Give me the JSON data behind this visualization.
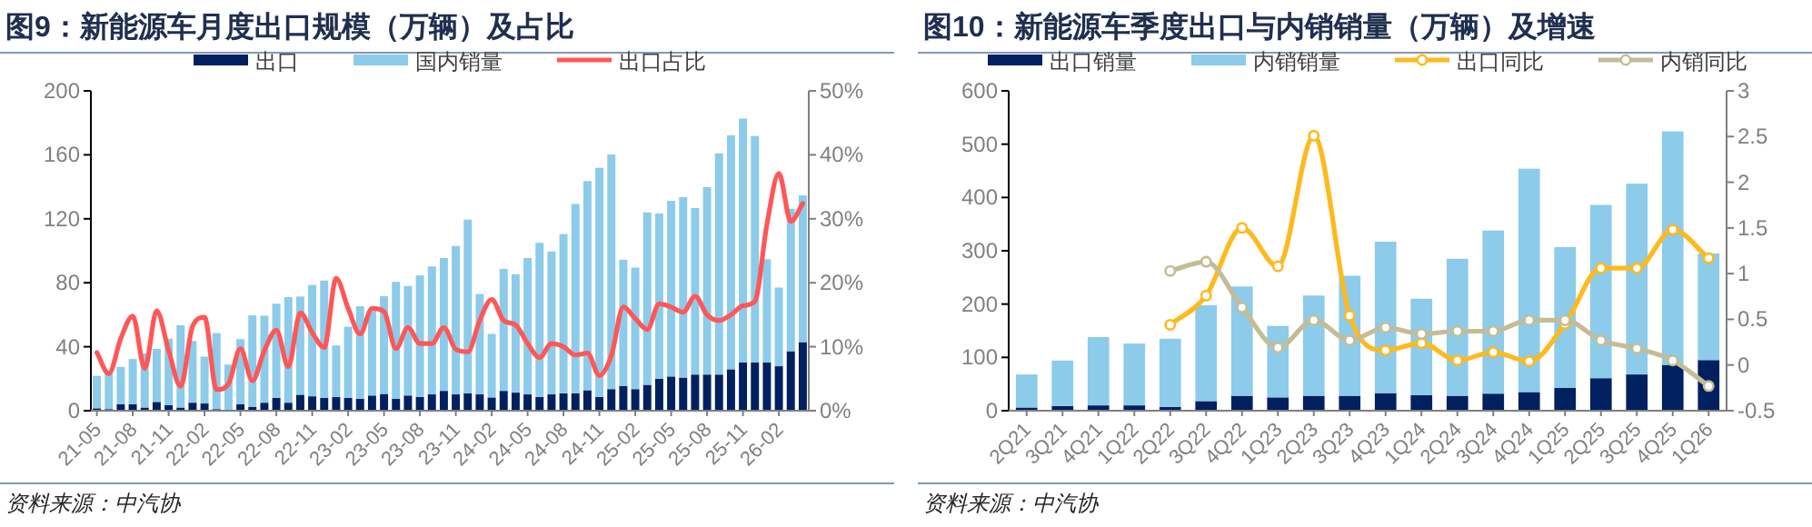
{
  "chart_data": [
    {
      "type": "bar",
      "title": "图9：新能源车月度出口规模（万辆）及占比",
      "stacked": true,
      "legend": "top",
      "categories": [
        "21-05",
        null,
        null,
        "21-08",
        null,
        null,
        "21-11",
        null,
        null,
        "22-02",
        null,
        null,
        "22-05",
        null,
        null,
        "22-08",
        null,
        null,
        "22-11",
        null,
        null,
        "23-02",
        null,
        null,
        "23-05",
        null,
        null,
        "23-08",
        null,
        null,
        "23-11",
        null,
        null,
        "24-02",
        null,
        null,
        "24-05",
        null,
        null,
        "24-08",
        null,
        null,
        "24-11",
        null,
        null,
        "25-02",
        null,
        null,
        "25-05",
        null,
        null,
        "25-08",
        null,
        null,
        "25-11",
        null,
        null,
        "26-02",
        null,
        null
      ],
      "series": [
        {
          "name": "出口",
          "color": "#002060",
          "values": [
            1.5,
            1,
            4,
            4,
            2,
            5.5,
            3.5,
            2,
            5,
            4.5,
            1,
            null,
            4,
            2.5,
            5,
            8,
            5,
            10,
            9,
            8,
            8.5,
            8,
            7.5,
            9.5,
            10.5,
            7.5,
            9.5,
            8.6,
            10.2,
            12.4,
            10.2,
            10.9,
            10.2,
            8.3,
            12.4,
            11.3,
            10.2,
            8.6,
            10.2,
            10.9,
            10.9,
            12.8,
            8.6,
            13.5,
            15.4,
            13.5,
            16.2,
            19.9,
            21.4,
            20.7,
            22.6,
            22.6,
            22.6,
            25.9,
            30.1,
            30.1,
            30.1,
            27.8,
            37.2,
            42.9
          ]
        },
        {
          "name": "国内销量",
          "color": "#8ccbea",
          "values": [
            20.3,
            23,
            23.4,
            28.3,
            33.7,
            33.2,
            41.5,
            51.4,
            38.6,
            29.3,
            47.5,
            28.8,
            40.7,
            57.1,
            54.4,
            58.9,
            66,
            61.4,
            69.6,
            73.4,
            32.3,
            44.5,
            57.8,
            54.1,
            61.2,
            73.1,
            68.5,
            76,
            80,
            83.1,
            92.8,
            108.6,
            62.8,
            39.7,
            76.3,
            74,
            85.3,
            96.4,
            89.4,
            99.6,
            118.4,
            130.8,
            143.3,
            146.7,
            79,
            76,
            107.8,
            103.4,
            109.8,
            112.8,
            104.1,
            117.2,
            138.3,
            146.3,
            152.6,
            141.7,
            64.6,
            49.2,
            89.1,
            91.7
          ]
        },
        {
          "name": "出口占比",
          "type": "line",
          "axis": "y2",
          "color": "#ff5757",
          "values": [
            9.1,
            5.8,
            11.3,
            14.8,
            6.6,
            15.6,
            9.4,
            3.8,
            13.2,
            14.6,
            3.3,
            4.2,
            9.7,
            4.7,
            9.4,
            12.6,
            6.9,
            15.3,
            12.2,
            9.9,
            20.7,
            16,
            12,
            16,
            15.5,
            9.7,
            13,
            10.5,
            10.5,
            13,
            9.6,
            9.2,
            14.1,
            17.4,
            14.1,
            13.4,
            10.5,
            8.3,
            10.5,
            10,
            8.7,
            9,
            5.5,
            8.6,
            16.2,
            14.4,
            12.7,
            16.7,
            16.2,
            15.4,
            17.9,
            15,
            14.1,
            15,
            16.4,
            17.1,
            29.1,
            37.1,
            29.6,
            32.4
          ]
        }
      ],
      "ylim": [
        0,
        200
      ],
      "yticks": [
        0,
        40,
        80,
        120,
        160,
        200
      ],
      "y2lim": [
        0,
        50
      ],
      "y2ticks": [
        {
          "value": 0,
          "label": "0%"
        },
        {
          "value": 10,
          "label": "10%"
        },
        {
          "value": 20,
          "label": "20%"
        },
        {
          "value": 30,
          "label": "30%"
        },
        {
          "value": 40,
          "label": "40%"
        },
        {
          "value": 50,
          "label": "50%"
        }
      ],
      "annotations": [
        "资料来源：中汽协"
      ]
    },
    {
      "type": "bar",
      "title": "图10：新能源车季度出口与内销销量（万辆）及增速",
      "stacked": true,
      "legend": "top",
      "categories": [
        "2Q21",
        "3Q21",
        "4Q21",
        "1Q22",
        "2Q22",
        "3Q22",
        "4Q22",
        "1Q23",
        "2Q23",
        "3Q23",
        "4Q23",
        "1Q24",
        "2Q24",
        "3Q24",
        "4Q24",
        "1Q25",
        "2Q25",
        "3Q25",
        "4Q25",
        "1Q26"
      ],
      "series": [
        {
          "name": "出口销量",
          "color": "#002060",
          "values": [
            6,
            9,
            10,
            10,
            7,
            18,
            28,
            25,
            28,
            28,
            33,
            29,
            28,
            32,
            35,
            43,
            61,
            68,
            86,
            95
          ]
        },
        {
          "name": "内销销量",
          "color": "#8ccbea",
          "values": [
            62,
            85,
            128,
            116,
            128,
            180,
            205,
            134,
            188,
            225,
            284,
            181,
            257,
            306,
            419,
            264,
            325,
            358,
            438,
            200
          ]
        },
        {
          "name": "出口同比",
          "type": "line",
          "axis": "y2",
          "marker": "circle",
          "color": "#ffb91d",
          "values": [
            null,
            null,
            null,
            null,
            0.44,
            0.76,
            1.5,
            1.08,
            2.51,
            0.54,
            0.16,
            0.24,
            0.05,
            0.14,
            0.04,
            0.45,
            1.06,
            1.06,
            1.48,
            1.17
          ]
        },
        {
          "name": "内销同比",
          "type": "line",
          "axis": "y2",
          "marker": "circle",
          "color": "#c4bc96",
          "values": [
            null,
            null,
            null,
            null,
            1.03,
            1.13,
            0.63,
            0.19,
            0.49,
            0.27,
            0.41,
            0.34,
            0.37,
            0.37,
            0.49,
            0.49,
            0.27,
            0.18,
            0.05,
            -0.23
          ]
        }
      ],
      "ylim": [
        0,
        600
      ],
      "yticks": [
        0,
        100,
        200,
        300,
        400,
        500,
        600
      ],
      "y2lim": [
        -0.5,
        3
      ],
      "y2ticks": [
        -0.5,
        0,
        0.5,
        1,
        1.5,
        2,
        2.5,
        3
      ],
      "annotations": [
        "资料来源：中汽协"
      ]
    }
  ]
}
